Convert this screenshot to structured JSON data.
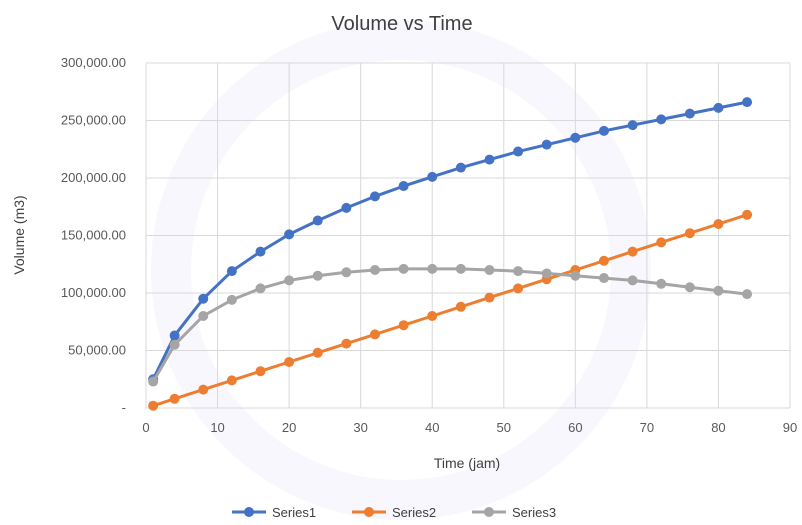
{
  "chart_data": {
    "type": "scatter",
    "title": "Volume vs Time",
    "xlabel": "Time (jam)",
    "ylabel": "Volume (m3)",
    "xlim": [
      0,
      90
    ],
    "ylim": [
      0,
      300000
    ],
    "x_ticks": [
      0,
      10,
      20,
      30,
      40,
      50,
      60,
      70,
      80,
      90
    ],
    "y_ticks": [
      0,
      50000,
      100000,
      150000,
      200000,
      250000,
      300000
    ],
    "y_tick_labels": [
      "-",
      "50,000.00",
      "100,000.00",
      "150,000.00",
      "200,000.00",
      "250,000.00",
      "300,000.00"
    ],
    "grid": true,
    "legend": "bottom",
    "x": [
      1,
      4,
      8,
      12,
      16,
      20,
      24,
      28,
      32,
      36,
      40,
      44,
      48,
      52,
      56,
      60,
      64,
      68,
      72,
      76,
      80,
      84
    ],
    "series": [
      {
        "name": "Series1",
        "color": "#4472c4",
        "values": [
          25000,
          63000,
          95000,
          119000,
          136000,
          151000,
          163000,
          174000,
          184000,
          193000,
          201000,
          209000,
          216000,
          223000,
          229000,
          235000,
          241000,
          246000,
          251000,
          256000,
          261000,
          266000
        ]
      },
      {
        "name": "Series2",
        "color": "#ed7d31",
        "values": [
          2000,
          8000,
          16000,
          24000,
          32000,
          40000,
          48000,
          56000,
          64000,
          72000,
          80000,
          88000,
          96000,
          104000,
          112000,
          120000,
          128000,
          136000,
          144000,
          152000,
          160000,
          168000
        ]
      },
      {
        "name": "Series3",
        "color": "#a5a5a5",
        "values": [
          23000,
          55000,
          80000,
          94000,
          104000,
          111000,
          115000,
          118000,
          120000,
          121000,
          121000,
          121000,
          120000,
          119000,
          117000,
          115000,
          113000,
          111000,
          108000,
          105000,
          102000,
          99000
        ]
      }
    ]
  }
}
